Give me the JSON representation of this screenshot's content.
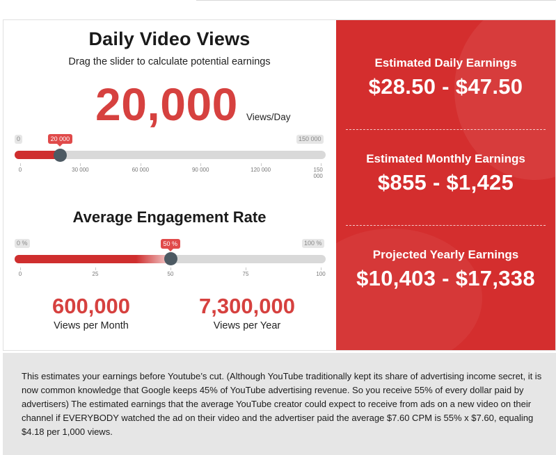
{
  "views": {
    "title": "Daily Video Views",
    "subtitle": "Drag the slider to calculate potential earnings",
    "value": "20,000",
    "unit": "Views/Day",
    "slider": {
      "min_label": "0",
      "max_label": "150 000",
      "current_label": "20 000",
      "current_value": 20000,
      "min": 0,
      "max": 150000,
      "ticks": [
        "0",
        "30 000",
        "60 000",
        "90 000",
        "120 000",
        "150 000"
      ]
    }
  },
  "engagement": {
    "title": "Average Engagement Rate",
    "slider": {
      "min_label": "0 %",
      "max_label": "100 %",
      "current_label": "50 %",
      "current_value": 50,
      "min": 0,
      "max": 100,
      "ticks": [
        "0",
        "25",
        "50",
        "75",
        "100"
      ]
    }
  },
  "stats": {
    "monthly_views": "600,000",
    "monthly_label": "Views per Month",
    "yearly_views": "7,300,000",
    "yearly_label": "Views per Year"
  },
  "earnings": {
    "daily_label": "Estimated Daily Earnings",
    "daily_value": "$28.50 - $47.50",
    "monthly_label": "Estimated Monthly Earnings",
    "monthly_value": "$855 - $1,425",
    "yearly_label": "Projected Yearly Earnings",
    "yearly_value": "$10,403 - $17,338"
  },
  "note": "This estimates your earnings before Youtube’s cut. (Although YouTube traditionally kept its share of advertising income secret, it is now common knowledge that Google keeps 45% of YouTube advertising revenue. So you receive 55% of every dollar paid by advertisers) The estimated earnings that the average YouTube creator could expect to receive from ads on a new video on their channel if EVERYBODY watched the ad on their video and the advertiser paid the average $7.60 CPM is 55% x $7.60, equaling $4.18 per 1,000 views.",
  "colors": {
    "accent": "#d6413f",
    "panel": "#d42e2e",
    "handle": "#4d5a63"
  }
}
